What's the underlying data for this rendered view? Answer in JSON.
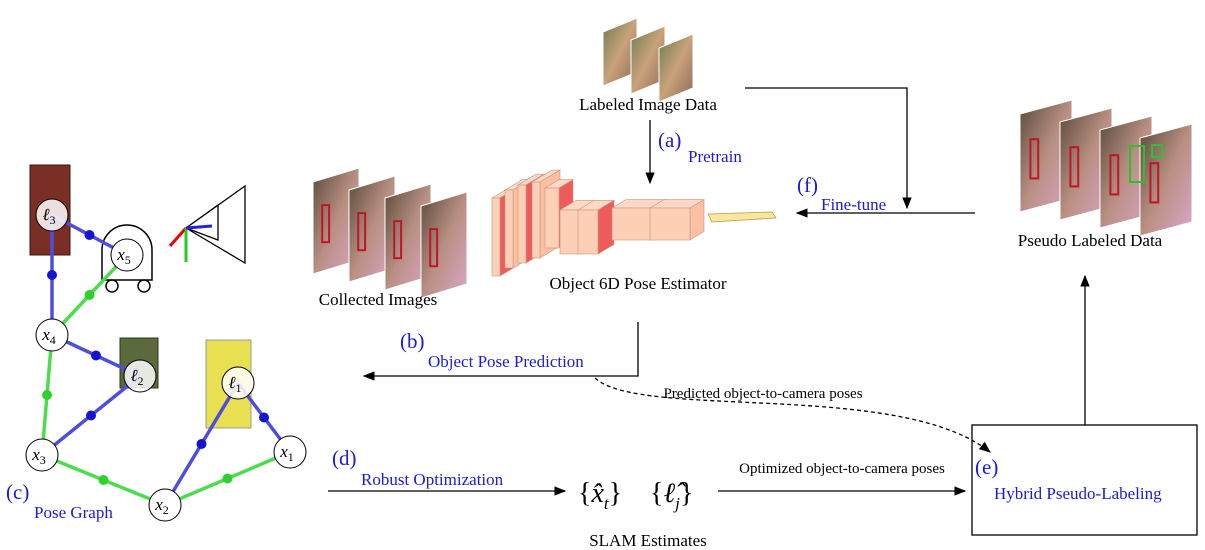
{
  "sources": {
    "labeled": "Labeled Image Data",
    "collected": "Collected Images",
    "pseudo": "Pseudo Labeled Data",
    "estimator": "Object 6D Pose Estimator",
    "slam": "SLAM Estimates"
  },
  "steps": {
    "a": {
      "tag": "(a)",
      "label": "Pretrain"
    },
    "b": {
      "tag": "(b)",
      "label": "Object Pose Prediction"
    },
    "c": {
      "tag": "(c)",
      "label": "Pose Graph"
    },
    "d": {
      "tag": "(d)",
      "label": "Robust Optimization"
    },
    "e": {
      "tag": "(e)",
      "label": "Hybrid Pseudo-Labeling"
    },
    "f": {
      "tag": "(f)",
      "label": "Fine-tune"
    }
  },
  "edges": {
    "predicted": "Predicted object-to-camera poses",
    "optimized": "Optimized object-to-camera poses"
  },
  "estimates": [
    {
      "open": "{",
      "base": "x̂",
      "sub": "t",
      "close": "}"
    },
    {
      "open": "{",
      "base": "ℓ̂",
      "sub": "j",
      "close": "}"
    }
  ],
  "nodes": [
    {
      "base": "x",
      "sub": "1"
    },
    {
      "base": "x",
      "sub": "2"
    },
    {
      "base": "x",
      "sub": "3"
    },
    {
      "base": "x",
      "sub": "4"
    },
    {
      "base": "x",
      "sub": "5"
    },
    {
      "base": "ℓ",
      "sub": "1"
    },
    {
      "base": "ℓ",
      "sub": "2"
    },
    {
      "base": "ℓ",
      "sub": "3"
    }
  ]
}
